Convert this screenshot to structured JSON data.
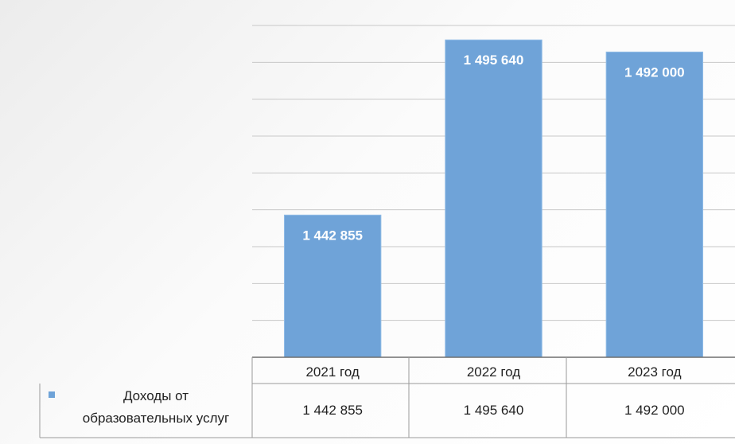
{
  "chart_data": {
    "type": "bar",
    "categories": [
      "2021 год",
      "2022 год",
      "2023 год"
    ],
    "series": [
      {
        "name": "Доходы от образовательных услуг",
        "values": [
          1442855,
          1495640,
          1492000
        ],
        "labels": [
          "1 442 855",
          "1 495 640",
          "1 492 000"
        ],
        "color": "#6fa3d8"
      }
    ],
    "ylim": [
      1400000,
      1500000
    ],
    "grid": true,
    "legend": "data-table",
    "data_table": {
      "row_header_lines": [
        "Доходы от",
        "образовательных услуг"
      ],
      "cells": [
        "1 442 855",
        "1 495 640",
        "1 492 000"
      ]
    }
  }
}
